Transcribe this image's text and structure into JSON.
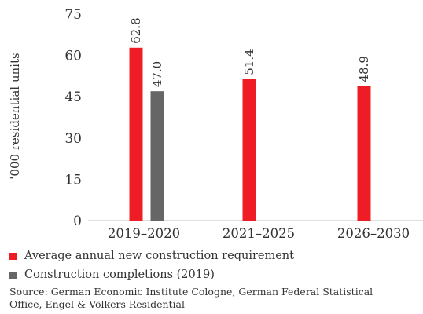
{
  "chart_data": {
    "type": "bar",
    "categories": [
      "2019–2020",
      "2021–2025",
      "2026–2030"
    ],
    "series": [
      {
        "name": "Average annual new construction requirement",
        "color": "#ee1c25",
        "values": [
          62.8,
          51.4,
          48.9
        ]
      },
      {
        "name": "Construction completions (2019)",
        "color": "#666666",
        "values": [
          47.0,
          null,
          null
        ]
      }
    ],
    "ylabel": "'000 residential units",
    "xlabel": "",
    "ylim": [
      0,
      75
    ],
    "yticks": [
      0,
      15,
      30,
      45,
      60,
      75
    ],
    "ytick_labels": [
      "0",
      "15",
      "30",
      "45",
      "60",
      "75"
    ],
    "data_labels": [
      [
        "62.8",
        "51.4",
        "48.9"
      ],
      [
        "47.0",
        null,
        null
      ]
    ],
    "grid": false,
    "legend_position": "bottom-left"
  },
  "legend": {
    "item1": "Average annual new construction requirement",
    "item2": "Construction completions (2019)"
  },
  "source": "Source: German Economic Institute Cologne, German Federal Statistical Office, Engel & Völkers Residential"
}
